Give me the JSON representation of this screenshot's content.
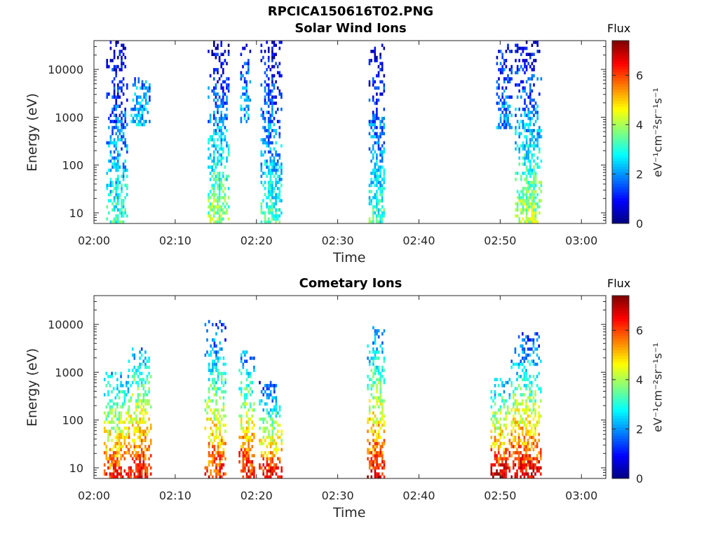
{
  "figure": {
    "title": "RPCICA150616T02.PNG"
  },
  "colorbar": {
    "label": "Flux",
    "units": "eV⁻¹cm⁻²sr⁻¹s⁻¹",
    "ticks": [
      "0",
      "2",
      "4",
      "6"
    ],
    "range": [
      0,
      7.4
    ],
    "colormap": "jet"
  },
  "chart_data": [
    {
      "type": "heatmap",
      "title": "Solar Wind Ions",
      "xlabel": "Time",
      "ylabel": "Energy (eV)",
      "xlim": [
        "02:00",
        "03:03"
      ],
      "ylim": [
        6,
        40000
      ],
      "yscale": "log",
      "xticks": [
        "02:00",
        "02:10",
        "02:20",
        "02:30",
        "02:40",
        "02:50",
        "03:00"
      ],
      "yticks": [
        "10",
        "100",
        "1000",
        "10000"
      ],
      "clim": [
        0,
        7.4
      ],
      "bursts": [
        {
          "start_min": 1.5,
          "end_min": 4.0,
          "emin": 6,
          "emax": 40000,
          "flux_at_min": 3.2,
          "flux_at_max": 0.4
        },
        {
          "start_min": 4.5,
          "end_min": 6.8,
          "emin": 600,
          "emax": 6000,
          "flux_at_min": 2.3,
          "flux_at_max": 1.8
        },
        {
          "start_min": 14.0,
          "end_min": 16.6,
          "emin": 6,
          "emax": 35000,
          "flux_at_min": 4.0,
          "flux_at_max": 0.4
        },
        {
          "start_min": 18.0,
          "end_min": 19.2,
          "emin": 700,
          "emax": 30000,
          "flux_at_min": 2.3,
          "flux_at_max": 1.0
        },
        {
          "start_min": 20.5,
          "end_min": 23.0,
          "emin": 6,
          "emax": 40000,
          "flux_at_min": 3.2,
          "flux_at_max": 0.4
        },
        {
          "start_min": 33.8,
          "end_min": 35.8,
          "emin": 6,
          "emax": 30000,
          "flux_at_min": 3.2,
          "flux_at_max": 0.4
        },
        {
          "start_min": 49.5,
          "end_min": 51.5,
          "emin": 500,
          "emax": 30000,
          "flux_at_min": 2.0,
          "flux_at_max": 1.0
        },
        {
          "start_min": 51.8,
          "end_min": 55.0,
          "emin": 6,
          "emax": 40000,
          "flux_at_min": 4.2,
          "flux_at_max": 0.4
        }
      ]
    },
    {
      "type": "heatmap",
      "title": "Cometary Ions",
      "xlabel": "Time",
      "ylabel": "Energy (eV)",
      "xlim": [
        "02:00",
        "03:03"
      ],
      "ylim": [
        6,
        40000
      ],
      "yscale": "log",
      "xticks": [
        "02:00",
        "02:10",
        "02:20",
        "02:30",
        "02:40",
        "02:50",
        "03:00"
      ],
      "yticks": [
        "10",
        "100",
        "1000",
        "10000"
      ],
      "clim": [
        0,
        7.4
      ],
      "bursts": [
        {
          "start_min": 1.2,
          "end_min": 4.2,
          "emin": 6,
          "emax": 900,
          "flux_at_min": 6.2,
          "flux_at_max": 2.2
        },
        {
          "start_min": 4.2,
          "end_min": 7.0,
          "emin": 6,
          "emax": 3000,
          "flux_at_min": 6.6,
          "flux_at_max": 2.0
        },
        {
          "start_min": 13.6,
          "end_min": 16.2,
          "emin": 6,
          "emax": 12000,
          "flux_at_min": 6.3,
          "flux_at_max": 1.0
        },
        {
          "start_min": 17.8,
          "end_min": 19.8,
          "emin": 6,
          "emax": 2500,
          "flux_at_min": 6.6,
          "flux_at_max": 1.8
        },
        {
          "start_min": 20.3,
          "end_min": 23.0,
          "emin": 6,
          "emax": 700,
          "flux_at_min": 6.6,
          "flux_at_max": 1.0
        },
        {
          "start_min": 33.6,
          "end_min": 35.8,
          "emin": 6,
          "emax": 9000,
          "flux_at_min": 6.6,
          "flux_at_max": 1.5
        },
        {
          "start_min": 48.8,
          "end_min": 51.2,
          "emin": 6,
          "emax": 700,
          "flux_at_min": 6.9,
          "flux_at_max": 2.0
        },
        {
          "start_min": 51.3,
          "end_min": 55.0,
          "emin": 6,
          "emax": 6000,
          "flux_at_min": 6.8,
          "flux_at_max": 1.2
        }
      ]
    }
  ]
}
